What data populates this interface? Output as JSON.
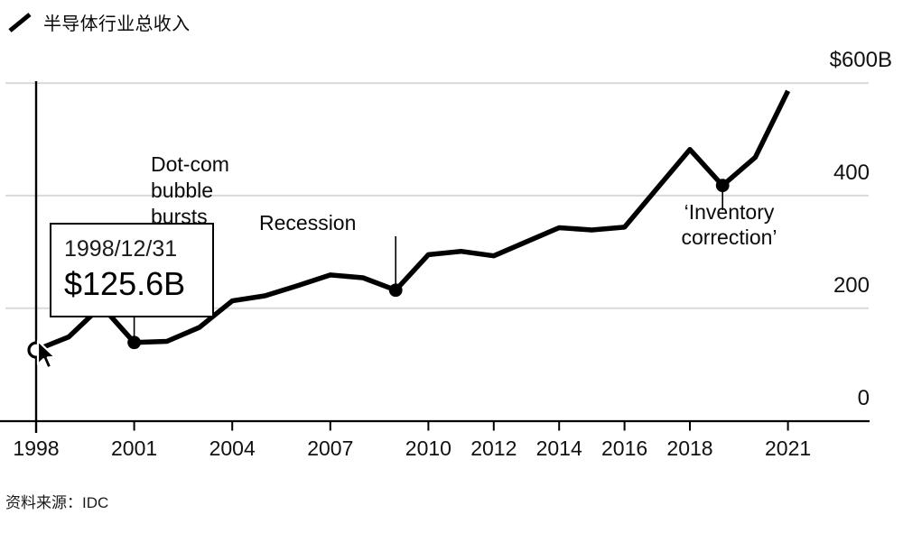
{
  "header": {
    "title": "半导体行业总收入"
  },
  "tooltip": {
    "date": "1998/12/31",
    "value": "$125.6B"
  },
  "source": {
    "label": "资料来源：IDC"
  },
  "chart_data": {
    "type": "line",
    "title": "半导体行业总收入",
    "unit": "$B",
    "x": [
      1998,
      1999,
      2000,
      2001,
      2002,
      2003,
      2004,
      2005,
      2006,
      2007,
      2008,
      2009,
      2010,
      2011,
      2012,
      2013,
      2014,
      2015,
      2016,
      2017,
      2018,
      2019,
      2020,
      2021
    ],
    "values": [
      125.6,
      149,
      204,
      139,
      141,
      166,
      213,
      222,
      240,
      259,
      254,
      232,
      295,
      301,
      293,
      318,
      343,
      339,
      344,
      413,
      482,
      418,
      468,
      586
    ],
    "xlim": [
      1998,
      2021
    ],
    "ylim": [
      0,
      600
    ],
    "xticks": [
      1998,
      2001,
      2004,
      2007,
      2010,
      2012,
      2014,
      2016,
      2018,
      2021
    ],
    "yticks": [
      0,
      200,
      400,
      600
    ],
    "ytick_labels": [
      "0",
      "200",
      "400",
      "$600B"
    ],
    "grid": "horizontal",
    "legend_position": "top-left",
    "line_color": "#000000",
    "grid_color": "#d9d9d9",
    "annotations": [
      {
        "id": "dotcom",
        "year": 2001,
        "value": 139,
        "label": "Dot-com\nbubble\nbursts"
      },
      {
        "id": "recession",
        "year": 2009,
        "value": 232,
        "label": "Recession"
      },
      {
        "id": "inventory",
        "year": 2019,
        "value": 418,
        "label": "‘Inventory\ncorrection’"
      }
    ],
    "start_marker": {
      "year": 1998,
      "value": 125.6
    }
  }
}
